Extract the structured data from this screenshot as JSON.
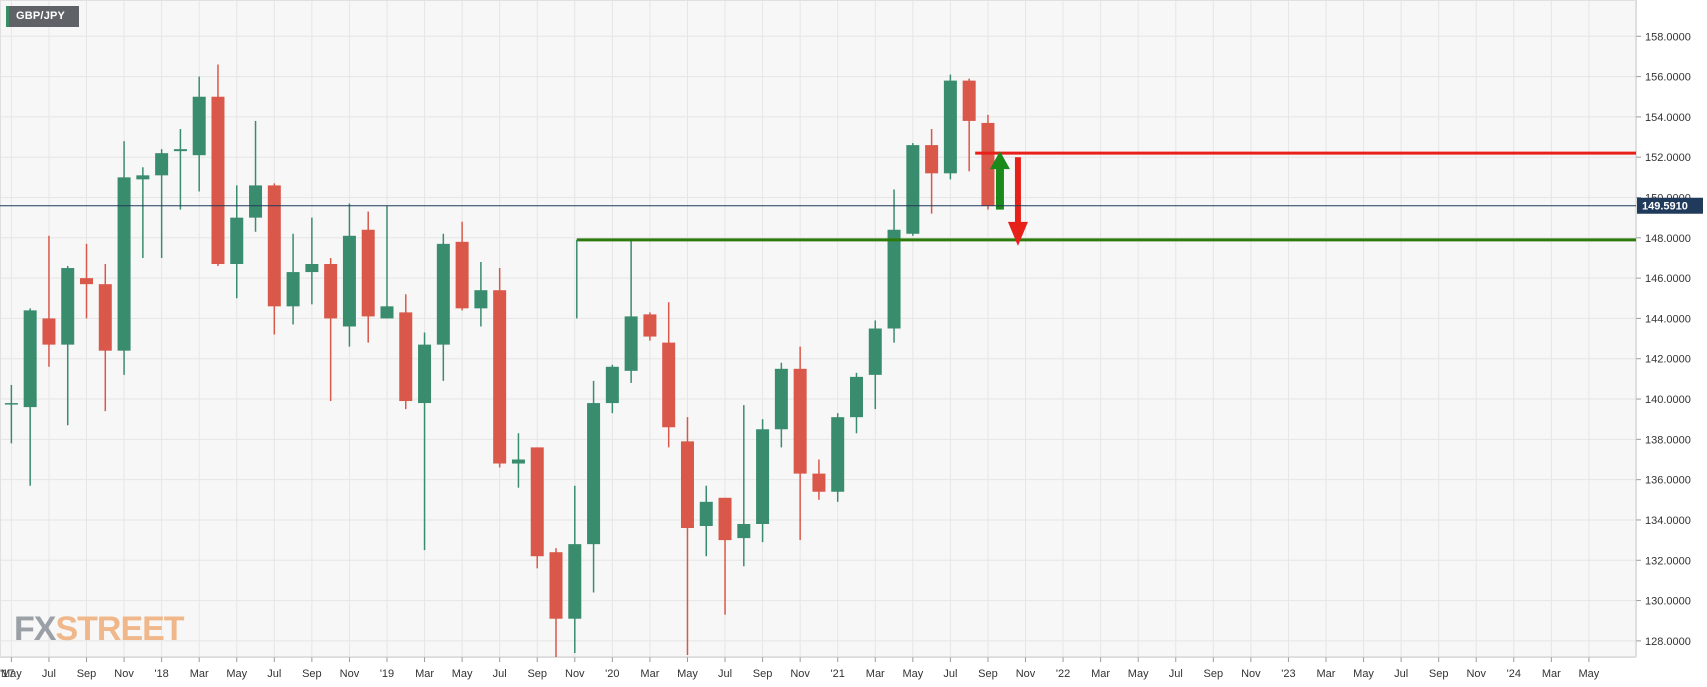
{
  "chart_data": {
    "type": "candlestick",
    "title": "GBP/JPY",
    "interval": "monthly",
    "y_axis": {
      "ticks": [
        128,
        130,
        132,
        134,
        136,
        138,
        140,
        142,
        144,
        146,
        148,
        150,
        152,
        154,
        156,
        158
      ],
      "tick_labels": [
        "128.0000",
        "130.0000",
        "132.0000",
        "134.0000",
        "136.0000",
        "138.0000",
        "140.0000",
        "142.0000",
        "144.0000",
        "146.0000",
        "148.0000",
        "150.0000",
        "152.0000",
        "154.0000",
        "156.0000",
        "158.0000"
      ],
      "range": [
        127.2,
        159.8
      ],
      "position": "right"
    },
    "x_axis": {
      "tick_labels": [
        "'17",
        "May",
        "Jul",
        "Sep",
        "Nov",
        "'18",
        "Mar",
        "May",
        "Jul",
        "Sep",
        "Nov",
        "'19",
        "Mar",
        "May",
        "Jul",
        "Sep",
        "Nov",
        "'20",
        "Mar",
        "May",
        "Jul",
        "Sep",
        "Nov",
        "'21",
        "Mar",
        "May",
        "Jul",
        "Sep",
        "Nov",
        "'22",
        "Mar",
        "May",
        "Jul",
        "Sep",
        "Nov",
        "'23",
        "Mar",
        "May",
        "Jul",
        "Sep",
        "Nov",
        "'24",
        "Mar",
        "May"
      ]
    },
    "current_price": {
      "value": 149.591,
      "label": "149.5910"
    },
    "grid": true,
    "candles": [
      {
        "o": 139.8,
        "h": 140.7,
        "l": 137.8,
        "c": 139.8
      },
      {
        "o": 139.6,
        "h": 144.5,
        "l": 135.7,
        "c": 144.4
      },
      {
        "o": 144.0,
        "h": 148.1,
        "l": 141.6,
        "c": 142.7
      },
      {
        "o": 142.7,
        "h": 146.6,
        "l": 138.7,
        "c": 146.5
      },
      {
        "o": 146.0,
        "h": 147.7,
        "l": 144.0,
        "c": 145.7
      },
      {
        "o": 145.7,
        "h": 146.7,
        "l": 139.4,
        "c": 142.4
      },
      {
        "o": 142.4,
        "h": 152.8,
        "l": 141.2,
        "c": 151.0
      },
      {
        "o": 150.9,
        "h": 151.5,
        "l": 147.0,
        "c": 151.1
      },
      {
        "o": 151.1,
        "h": 152.4,
        "l": 147.0,
        "c": 152.2
      },
      {
        "o": 152.3,
        "h": 153.4,
        "l": 149.4,
        "c": 152.4
      },
      {
        "o": 152.1,
        "h": 156.0,
        "l": 150.3,
        "c": 155.0
      },
      {
        "o": 155.0,
        "h": 156.6,
        "l": 146.6,
        "c": 146.7
      },
      {
        "o": 146.7,
        "h": 150.6,
        "l": 145.0,
        "c": 149.0
      },
      {
        "o": 149.0,
        "h": 153.8,
        "l": 148.3,
        "c": 150.6
      },
      {
        "o": 150.6,
        "h": 150.7,
        "l": 143.2,
        "c": 144.6
      },
      {
        "o": 144.6,
        "h": 148.2,
        "l": 143.7,
        "c": 146.3
      },
      {
        "o": 146.3,
        "h": 149.0,
        "l": 144.7,
        "c": 146.7
      },
      {
        "o": 146.7,
        "h": 147.0,
        "l": 139.9,
        "c": 144.0
      },
      {
        "o": 143.6,
        "h": 149.7,
        "l": 142.6,
        "c": 148.1
      },
      {
        "o": 148.4,
        "h": 149.3,
        "l": 142.8,
        "c": 144.1
      },
      {
        "o": 144.0,
        "h": 149.6,
        "l": 144.0,
        "c": 144.6
      },
      {
        "o": 144.3,
        "h": 145.2,
        "l": 139.5,
        "c": 139.9
      },
      {
        "o": 139.8,
        "h": 143.3,
        "l": 132.5,
        "c": 142.7
      },
      {
        "o": 142.7,
        "h": 148.2,
        "l": 140.9,
        "c": 147.7
      },
      {
        "o": 147.8,
        "h": 148.8,
        "l": 144.4,
        "c": 144.5
      },
      {
        "o": 144.5,
        "h": 146.8,
        "l": 143.6,
        "c": 145.4
      },
      {
        "o": 145.4,
        "h": 146.5,
        "l": 136.6,
        "c": 136.8
      },
      {
        "o": 136.8,
        "h": 138.3,
        "l": 135.6,
        "c": 137.0
      },
      {
        "o": 137.6,
        "h": 137.6,
        "l": 131.6,
        "c": 132.2
      },
      {
        "o": 132.4,
        "h": 132.6,
        "l": 126.5,
        "c": 129.1
      },
      {
        "o": 129.1,
        "h": 135.7,
        "l": 127.4,
        "c": 132.8
      },
      {
        "o": 132.8,
        "h": 140.9,
        "l": 130.4,
        "c": 139.8
      },
      {
        "o": 139.8,
        "h": 141.7,
        "l": 139.3,
        "c": 141.6
      },
      {
        "o": 141.4,
        "h": 147.9,
        "l": 140.8,
        "c": 144.1
      },
      {
        "o": 144.2,
        "h": 144.3,
        "l": 142.9,
        "c": 143.1
      },
      {
        "o": 142.8,
        "h": 144.8,
        "l": 137.6,
        "c": 138.6
      },
      {
        "o": 137.9,
        "h": 139.1,
        "l": 127.3,
        "c": 133.6
      },
      {
        "o": 133.7,
        "h": 135.7,
        "l": 132.2,
        "c": 134.9
      },
      {
        "o": 135.1,
        "h": 135.1,
        "l": 129.3,
        "c": 133.0
      },
      {
        "o": 133.1,
        "h": 139.7,
        "l": 131.7,
        "c": 133.8
      },
      {
        "o": 133.8,
        "h": 139.0,
        "l": 132.9,
        "c": 138.5
      },
      {
        "o": 138.5,
        "h": 141.8,
        "l": 137.6,
        "c": 141.5
      },
      {
        "o": 141.5,
        "h": 142.6,
        "l": 133.0,
        "c": 136.3
      },
      {
        "o": 136.3,
        "h": 137.0,
        "l": 135.0,
        "c": 135.4
      },
      {
        "o": 135.4,
        "h": 139.3,
        "l": 134.9,
        "c": 139.1
      },
      {
        "o": 139.1,
        "h": 141.3,
        "l": 138.3,
        "c": 141.1
      },
      {
        "o": 141.2,
        "h": 143.9,
        "l": 139.5,
        "c": 143.5
      },
      {
        "o": 143.5,
        "h": 150.4,
        "l": 142.8,
        "c": 148.4
      },
      {
        "o": 148.2,
        "h": 152.7,
        "l": 148.1,
        "c": 152.6
      },
      {
        "o": 152.6,
        "h": 153.4,
        "l": 149.2,
        "c": 151.2
      },
      {
        "o": 151.2,
        "h": 156.1,
        "l": 150.9,
        "c": 155.8
      },
      {
        "o": 155.8,
        "h": 155.9,
        "l": 151.3,
        "c": 153.8
      },
      {
        "o": 153.7,
        "h": 154.1,
        "l": 149.4,
        "c": 149.6
      }
    ],
    "annotations": [
      {
        "type": "horizontal-line",
        "color": "#e8201a",
        "y": 152.2
      },
      {
        "type": "horizontal-line",
        "color": "#2b7a0b",
        "y": 147.9
      },
      {
        "type": "arrow-up",
        "color": "#1a8a1a",
        "from": 149.4,
        "to": 152.3
      },
      {
        "type": "arrow-down",
        "color": "#e8201a",
        "from": 152.0,
        "to": 147.6
      }
    ],
    "colors": {
      "bull": "#3a8c6e",
      "bear": "#d9584a",
      "background": "#f7f7f7",
      "grid": "#e6e6e6",
      "price_tag": "#1f3a5a"
    }
  },
  "branding": {
    "fx": "FX",
    "street": "STREET"
  }
}
